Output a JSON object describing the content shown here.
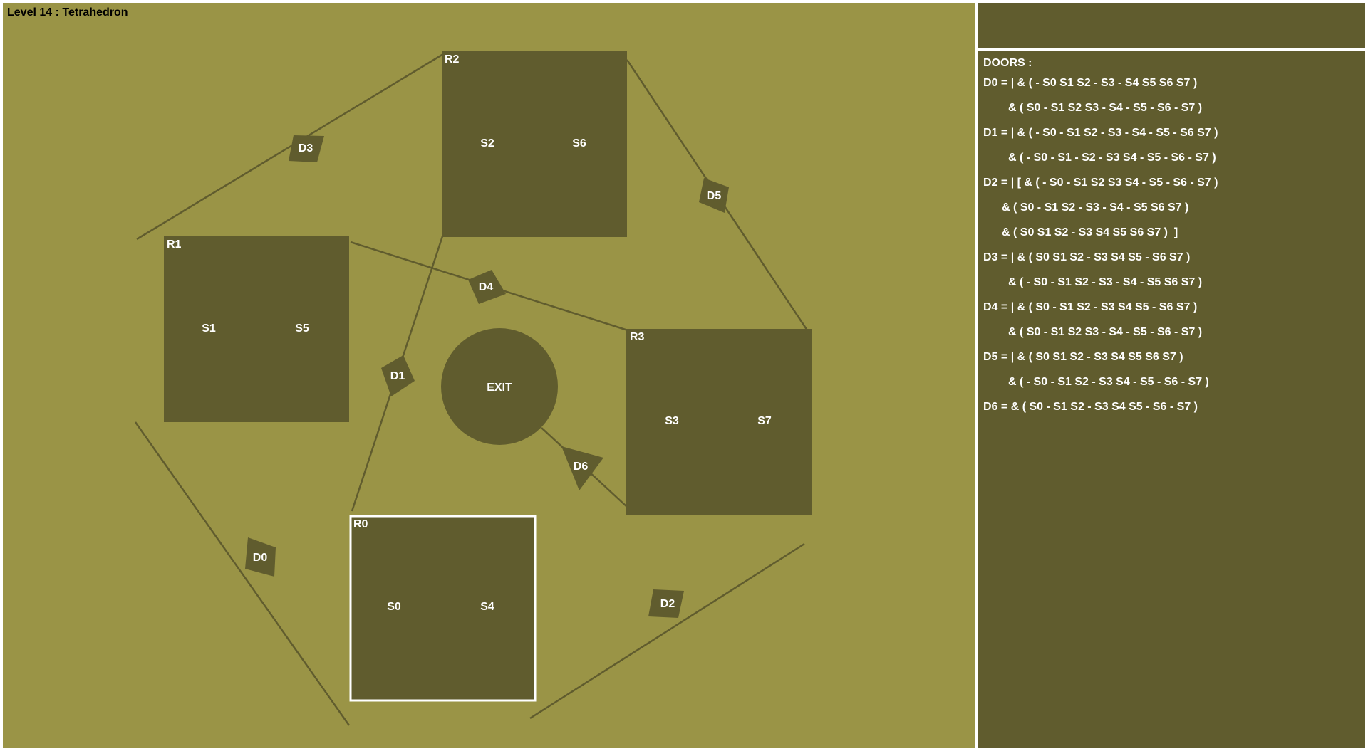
{
  "level": {
    "title": "Level 14 : Tetrahedron"
  },
  "colors": {
    "floor": "#9a9446",
    "room": "#605c2e",
    "panel": "#605c2e",
    "text": "#ffffff",
    "current_room_outline": "#ffffff"
  },
  "rooms": [
    {
      "id": "R0",
      "switches": [
        "S0",
        "S4"
      ],
      "current": true
    },
    {
      "id": "R1",
      "switches": [
        "S1",
        "S5"
      ],
      "current": false
    },
    {
      "id": "R2",
      "switches": [
        "S2",
        "S6"
      ],
      "current": false
    },
    {
      "id": "R3",
      "switches": [
        "S3",
        "S7"
      ],
      "current": false
    }
  ],
  "exit": {
    "label": "EXIT"
  },
  "doors": [
    {
      "id": "D0",
      "connects": [
        "R0",
        "R1"
      ]
    },
    {
      "id": "D1",
      "connects": [
        "R0",
        "R2"
      ]
    },
    {
      "id": "D2",
      "connects": [
        "R0",
        "R3"
      ]
    },
    {
      "id": "D3",
      "connects": [
        "R1",
        "R2"
      ]
    },
    {
      "id": "D4",
      "connects": [
        "R1",
        "R3"
      ]
    },
    {
      "id": "D5",
      "connects": [
        "R2",
        "R3"
      ]
    },
    {
      "id": "D6",
      "connects": [
        "R3",
        "EXIT"
      ]
    }
  ],
  "doors_panel": {
    "title": "DOORS :",
    "lines": [
      "D0 = | & ( - S0 S1 S2 - S3 - S4 S5 S6 S7 )",
      "& ( S0 - S1 S2 S3 - S4 - S5 - S6 - S7 )",
      "D1 = | & ( - S0 - S1 S2 - S3 - S4 - S5 - S6 S7 )",
      "& ( - S0 - S1 - S2 - S3 S4 - S5 - S6 - S7 )",
      "D2 = | [ & ( - S0 - S1 S2 S3 S4 - S5 - S6 - S7 )",
      "& ( S0 - S1 S2 - S3 - S4 - S5 S6 S7 )",
      "& ( S0 S1 S2 - S3 S4 S5 S6 S7 )  ]",
      "D3 = | & ( S0 S1 S2 - S3 S4 S5 - S6 S7 )",
      "& ( - S0 - S1 S2 - S3 - S4 - S5 S6 S7 )",
      "D4 = | & ( S0 - S1 S2 - S3 S4 S5 - S6 S7 )",
      "& ( S0 - S1 S2 S3 - S4 - S5 - S6 - S7 )",
      "D5 = | & ( S0 S1 S2 - S3 S4 S5 S6 S7 )",
      "& ( - S0 - S1 S2 - S3 S4 - S5 - S6 - S7 )",
      "D6 = & ( S0 - S1 S2 - S3 S4 S5 - S6 - S7 )"
    ]
  }
}
